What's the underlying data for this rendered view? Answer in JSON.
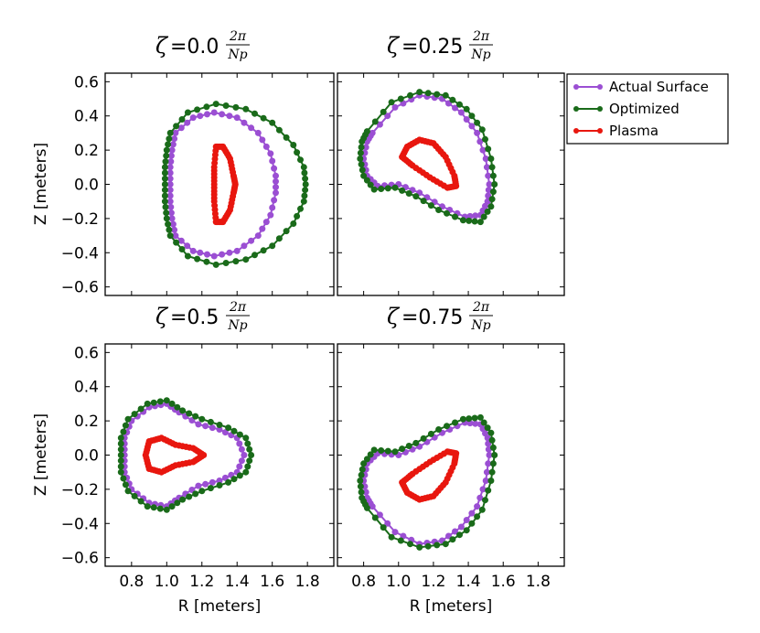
{
  "chart_data": {
    "type": "line",
    "x_axis_label": "R [meters]",
    "y_axis_label": "Z [meters]",
    "xlim": [
      0.65,
      1.95
    ],
    "ylim": [
      -0.65,
      0.65
    ],
    "x_ticks": [
      "0.8",
      "1.0",
      "1.2",
      "1.4",
      "1.6",
      "1.8"
    ],
    "y_ticks": [
      "0.6",
      "0.4",
      "0.2",
      "0.0",
      "−0.2",
      "−0.4",
      "−0.6"
    ],
    "legend": [
      "Actual Surface",
      "Optimized",
      "Plasma"
    ],
    "colors": {
      "Actual Surface": "#9b4fd3",
      "Optimized": "#1a6b1a",
      "Plasma": "#e8170f"
    },
    "title_symbol": "ζ",
    "title_fraction_numerator": "2π",
    "title_fraction_denominator": "Np",
    "panels": [
      {
        "title_value": "=0.0",
        "series": [
          {
            "name": "Actual Surface",
            "points": [
              [
                1.05,
                0.3
              ],
              [
                1.15,
                0.39
              ],
              [
                1.27,
                0.42
              ],
              [
                1.4,
                0.39
              ],
              [
                1.52,
                0.3
              ],
              [
                1.59,
                0.18
              ],
              [
                1.62,
                0.05
              ],
              [
                1.62,
                -0.05
              ],
              [
                1.59,
                -0.18
              ],
              [
                1.52,
                -0.3
              ],
              [
                1.4,
                -0.39
              ],
              [
                1.27,
                -0.42
              ],
              [
                1.15,
                -0.39
              ],
              [
                1.05,
                -0.3
              ],
              [
                1.03,
                -0.2
              ],
              [
                1.02,
                -0.1
              ],
              [
                1.02,
                0.0
              ],
              [
                1.02,
                0.1
              ],
              [
                1.03,
                0.2
              ],
              [
                1.05,
                0.3
              ]
            ]
          },
          {
            "name": "Optimized",
            "points": [
              [
                1.02,
                0.3
              ],
              [
                1.12,
                0.42
              ],
              [
                1.28,
                0.47
              ],
              [
                1.45,
                0.44
              ],
              [
                1.6,
                0.36
              ],
              [
                1.72,
                0.23
              ],
              [
                1.78,
                0.1
              ],
              [
                1.79,
                0.0
              ],
              [
                1.78,
                -0.1
              ],
              [
                1.72,
                -0.23
              ],
              [
                1.6,
                -0.36
              ],
              [
                1.45,
                -0.44
              ],
              [
                1.28,
                -0.47
              ],
              [
                1.12,
                -0.42
              ],
              [
                1.02,
                -0.3
              ],
              [
                1.0,
                -0.2
              ],
              [
                0.99,
                -0.1
              ],
              [
                0.99,
                0.0
              ],
              [
                0.99,
                0.1
              ],
              [
                1.0,
                0.2
              ],
              [
                1.02,
                0.3
              ]
            ]
          },
          {
            "name": "Plasma",
            "points": [
              [
                1.32,
                0.22
              ],
              [
                1.36,
                0.15
              ],
              [
                1.38,
                0.05
              ],
              [
                1.39,
                0.0
              ],
              [
                1.38,
                -0.05
              ],
              [
                1.36,
                -0.15
              ],
              [
                1.32,
                -0.22
              ],
              [
                1.28,
                -0.22
              ],
              [
                1.27,
                -0.1
              ],
              [
                1.27,
                0.0
              ],
              [
                1.27,
                0.1
              ],
              [
                1.28,
                0.22
              ],
              [
                1.32,
                0.22
              ]
            ]
          }
        ]
      },
      {
        "title_value": "=0.25",
        "series": [
          {
            "name": "Actual Surface",
            "points": [
              [
                0.85,
                0.3
              ],
              [
                0.98,
                0.45
              ],
              [
                1.12,
                0.52
              ],
              [
                1.25,
                0.5
              ],
              [
                1.36,
                0.42
              ],
              [
                1.45,
                0.3
              ],
              [
                1.5,
                0.15
              ],
              [
                1.52,
                0.0
              ],
              [
                1.51,
                -0.1
              ],
              [
                1.47,
                -0.18
              ],
              [
                1.38,
                -0.19
              ],
              [
                1.25,
                -0.13
              ],
              [
                1.12,
                -0.05
              ],
              [
                1.0,
                0.0
              ],
              [
                0.88,
                -0.01
              ],
              [
                0.82,
                0.05
              ],
              [
                0.8,
                0.15
              ],
              [
                0.82,
                0.25
              ],
              [
                0.85,
                0.3
              ]
            ]
          },
          {
            "name": "Optimized",
            "points": [
              [
                0.82,
                0.31
              ],
              [
                0.96,
                0.48
              ],
              [
                1.12,
                0.54
              ],
              [
                1.27,
                0.52
              ],
              [
                1.39,
                0.44
              ],
              [
                1.48,
                0.32
              ],
              [
                1.53,
                0.15
              ],
              [
                1.55,
                0.0
              ],
              [
                1.53,
                -0.13
              ],
              [
                1.47,
                -0.22
              ],
              [
                1.37,
                -0.21
              ],
              [
                1.23,
                -0.15
              ],
              [
                1.1,
                -0.07
              ],
              [
                0.98,
                -0.02
              ],
              [
                0.86,
                -0.03
              ],
              [
                0.8,
                0.05
              ],
              [
                0.78,
                0.15
              ],
              [
                0.79,
                0.25
              ],
              [
                0.82,
                0.31
              ]
            ]
          },
          {
            "name": "Plasma",
            "points": [
              [
                1.05,
                0.22
              ],
              [
                1.12,
                0.26
              ],
              [
                1.2,
                0.24
              ],
              [
                1.27,
                0.16
              ],
              [
                1.32,
                0.05
              ],
              [
                1.33,
                -0.01
              ],
              [
                1.28,
                -0.02
              ],
              [
                1.18,
                0.04
              ],
              [
                1.08,
                0.11
              ],
              [
                1.02,
                0.16
              ],
              [
                1.05,
                0.22
              ]
            ]
          }
        ]
      },
      {
        "title_value": "=0.5",
        "series": [
          {
            "name": "Actual Surface",
            "points": [
              [
                0.8,
                0.2
              ],
              [
                0.9,
                0.28
              ],
              [
                1.0,
                0.3
              ],
              [
                1.07,
                0.25
              ],
              [
                1.18,
                0.18
              ],
              [
                1.3,
                0.15
              ],
              [
                1.4,
                0.1
              ],
              [
                1.44,
                0.0
              ],
              [
                1.4,
                -0.1
              ],
              [
                1.3,
                -0.15
              ],
              [
                1.18,
                -0.18
              ],
              [
                1.07,
                -0.25
              ],
              [
                1.0,
                -0.3
              ],
              [
                0.9,
                -0.28
              ],
              [
                0.8,
                -0.2
              ],
              [
                0.76,
                -0.1
              ],
              [
                0.76,
                0.0
              ],
              [
                0.76,
                0.1
              ],
              [
                0.8,
                0.2
              ]
            ]
          },
          {
            "name": "Optimized",
            "points": [
              [
                0.78,
                0.21
              ],
              [
                0.89,
                0.3
              ],
              [
                1.0,
                0.32
              ],
              [
                1.09,
                0.26
              ],
              [
                1.2,
                0.21
              ],
              [
                1.35,
                0.16
              ],
              [
                1.45,
                0.1
              ],
              [
                1.48,
                0.0
              ],
              [
                1.45,
                -0.1
              ],
              [
                1.35,
                -0.16
              ],
              [
                1.2,
                -0.21
              ],
              [
                1.09,
                -0.26
              ],
              [
                1.0,
                -0.32
              ],
              [
                0.89,
                -0.3
              ],
              [
                0.78,
                -0.21
              ],
              [
                0.74,
                -0.1
              ],
              [
                0.74,
                0.0
              ],
              [
                0.74,
                0.1
              ],
              [
                0.78,
                0.21
              ]
            ]
          },
          {
            "name": "Plasma",
            "points": [
              [
                0.9,
                0.08
              ],
              [
                0.97,
                0.1
              ],
              [
                1.05,
                0.06
              ],
              [
                1.15,
                0.04
              ],
              [
                1.21,
                0.0
              ],
              [
                1.15,
                -0.04
              ],
              [
                1.05,
                -0.06
              ],
              [
                0.97,
                -0.1
              ],
              [
                0.9,
                -0.08
              ],
              [
                0.88,
                0.0
              ],
              [
                0.9,
                0.08
              ]
            ]
          }
        ]
      },
      {
        "title_value": "=0.75",
        "series": [
          {
            "name": "Actual Surface",
            "points": [
              [
                0.85,
                -0.3
              ],
              [
                0.98,
                -0.45
              ],
              [
                1.12,
                -0.52
              ],
              [
                1.25,
                -0.5
              ],
              [
                1.36,
                -0.42
              ],
              [
                1.45,
                -0.3
              ],
              [
                1.5,
                -0.15
              ],
              [
                1.52,
                0.0
              ],
              [
                1.51,
                0.1
              ],
              [
                1.47,
                0.18
              ],
              [
                1.38,
                0.19
              ],
              [
                1.25,
                0.13
              ],
              [
                1.12,
                0.05
              ],
              [
                1.0,
                0.0
              ],
              [
                0.88,
                0.01
              ],
              [
                0.82,
                -0.05
              ],
              [
                0.8,
                -0.15
              ],
              [
                0.82,
                -0.25
              ],
              [
                0.85,
                -0.3
              ]
            ]
          },
          {
            "name": "Optimized",
            "points": [
              [
                0.82,
                -0.31
              ],
              [
                0.96,
                -0.48
              ],
              [
                1.12,
                -0.54
              ],
              [
                1.27,
                -0.52
              ],
              [
                1.39,
                -0.44
              ],
              [
                1.48,
                -0.32
              ],
              [
                1.53,
                -0.15
              ],
              [
                1.55,
                0.0
              ],
              [
                1.53,
                0.13
              ],
              [
                1.47,
                0.22
              ],
              [
                1.37,
                0.21
              ],
              [
                1.23,
                0.15
              ],
              [
                1.1,
                0.07
              ],
              [
                0.98,
                0.02
              ],
              [
                0.86,
                0.03
              ],
              [
                0.8,
                -0.05
              ],
              [
                0.78,
                -0.15
              ],
              [
                0.79,
                -0.25
              ],
              [
                0.82,
                -0.31
              ]
            ]
          },
          {
            "name": "Plasma",
            "points": [
              [
                1.05,
                -0.22
              ],
              [
                1.12,
                -0.26
              ],
              [
                1.2,
                -0.24
              ],
              [
                1.27,
                -0.16
              ],
              [
                1.32,
                -0.05
              ],
              [
                1.33,
                0.01
              ],
              [
                1.28,
                0.02
              ],
              [
                1.18,
                -0.04
              ],
              [
                1.08,
                -0.11
              ],
              [
                1.02,
                -0.16
              ],
              [
                1.05,
                -0.22
              ]
            ]
          }
        ]
      }
    ]
  }
}
